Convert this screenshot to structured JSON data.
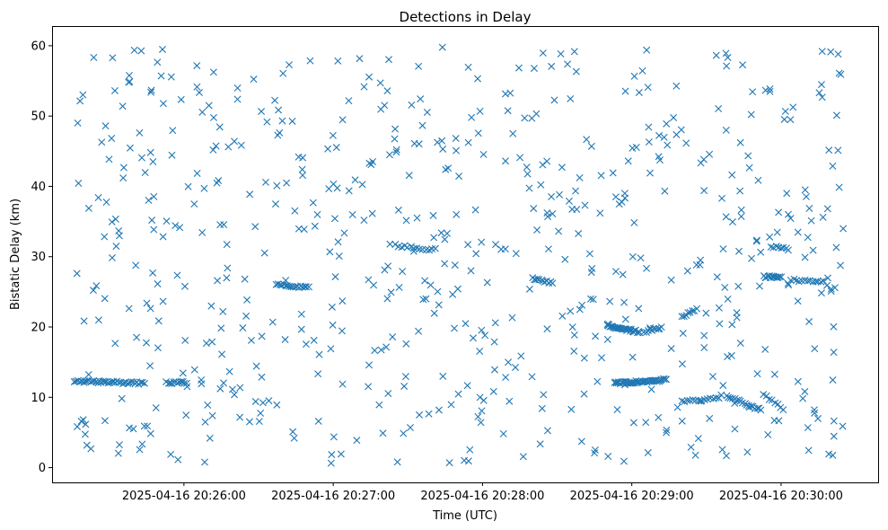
{
  "chart_data": {
    "type": "scatter",
    "title": "Detections in Delay",
    "xlabel": "Time (UTC)",
    "ylabel": "Bistatic Delay (km)",
    "x_ticks": [
      "2025-04-16 20:26:00",
      "2025-04-16 20:27:00",
      "2025-04-16 20:28:00",
      "2025-04-16 20:29:00",
      "2025-04-16 20:30:00"
    ],
    "y_ticks": [
      "0",
      "10",
      "20",
      "30",
      "40",
      "50",
      "60"
    ],
    "xlim": [
      "2025-04-16 20:25:07",
      "2025-04-16 20:30:39"
    ],
    "ylim": [
      -2.1,
      62.8
    ],
    "grid": false,
    "marker": "x",
    "color": "#1f77b4",
    "series": [
      {
        "tracks": [
          {
            "time_start": "2025-04-16 20:25:16",
            "time_end": "2025-04-16 20:25:44",
            "delay_start": 12.3,
            "delay_end": 12.0,
            "count": 40
          },
          {
            "time_start": "2025-04-16 20:25:53",
            "time_end": "2025-04-16 20:26:01",
            "delay_start": 12.1,
            "delay_end": 12.1,
            "count": 12
          },
          {
            "time_start": "2025-04-16 20:26:37",
            "time_end": "2025-04-16 20:26:50",
            "delay_start": 26.0,
            "delay_end": 25.6,
            "count": 18
          },
          {
            "time_start": "2025-04-16 20:27:25",
            "time_end": "2025-04-16 20:27:41",
            "delay_start": 31.6,
            "delay_end": 31.0,
            "count": 14
          },
          {
            "time_start": "2025-04-16 20:28:20",
            "time_end": "2025-04-16 20:28:28",
            "delay_start": 27.0,
            "delay_end": 26.2,
            "count": 12
          },
          {
            "time_start": "2025-04-16 20:28:50",
            "time_end": "2025-04-16 20:29:03",
            "delay_start": 20.2,
            "delay_end": 19.3,
            "count": 30
          },
          {
            "time_start": "2025-04-16 20:28:53",
            "time_end": "2025-04-16 20:29:14",
            "delay_start": 12.0,
            "delay_end": 12.5,
            "count": 45
          },
          {
            "time_start": "2025-04-16 20:29:05",
            "time_end": "2025-04-16 20:29:12",
            "delay_start": 19.3,
            "delay_end": 20.0,
            "count": 10
          },
          {
            "time_start": "2025-04-16 20:29:20",
            "time_end": "2025-04-16 20:29:26",
            "delay_start": 21.5,
            "delay_end": 22.5,
            "count": 8
          },
          {
            "time_start": "2025-04-16 20:29:20",
            "time_end": "2025-04-16 20:29:35",
            "delay_start": 9.5,
            "delay_end": 9.8,
            "count": 14
          },
          {
            "time_start": "2025-04-16 20:29:38",
            "time_end": "2025-04-16 20:29:52",
            "delay_start": 10.2,
            "delay_end": 8.2,
            "count": 18
          },
          {
            "time_start": "2025-04-16 20:29:53",
            "time_end": "2025-04-16 20:30:00",
            "delay_start": 27.2,
            "delay_end": 27.0,
            "count": 14
          },
          {
            "time_start": "2025-04-16 20:29:56",
            "time_end": "2025-04-16 20:30:03",
            "delay_start": 31.4,
            "delay_end": 31.1,
            "count": 8
          },
          {
            "time_start": "2025-04-16 20:30:04",
            "time_end": "2025-04-16 20:30:16",
            "delay_start": 26.7,
            "delay_end": 26.3,
            "count": 12
          },
          {
            "time_start": "2025-04-16 20:29:53",
            "time_end": "2025-04-16 20:30:01",
            "delay_start": 10.3,
            "delay_end": 8.4,
            "count": 8
          }
        ],
        "scattered_points": {
          "count": 640,
          "time_range": [
            "2025-04-16 20:25:16",
            "2025-04-16 20:30:25"
          ],
          "delay_range": [
            0.5,
            59.8
          ]
        }
      }
    ]
  }
}
